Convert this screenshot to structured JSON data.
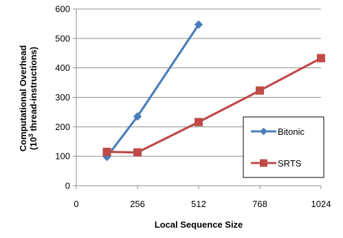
{
  "chart_data": {
    "type": "line",
    "title": "",
    "xlabel": "Local Sequence Size",
    "ylabel_line1": "Computational Overhead",
    "ylabel_line2_prefix": "(10",
    "ylabel_line2_sup": "3",
    "ylabel_line2_suffix": " thread-instructions)",
    "xlim": [
      0,
      1024
    ],
    "ylim": [
      0,
      600
    ],
    "xticks": [
      0,
      256,
      512,
      768,
      1024
    ],
    "yticks": [
      0,
      100,
      200,
      300,
      400,
      500,
      600
    ],
    "grid": "horizontal",
    "legend_position": "right",
    "series": [
      {
        "name": "Bitonic",
        "color": "#4a7ebb",
        "marker": "diamond",
        "points": [
          [
            128,
            98
          ],
          [
            256,
            235
          ],
          [
            512,
            547
          ]
        ]
      },
      {
        "name": "SRTS",
        "color": "#be4b48",
        "marker": "square",
        "points": [
          [
            128,
            115
          ],
          [
            256,
            113
          ],
          [
            512,
            216
          ],
          [
            768,
            323
          ],
          [
            1024,
            433
          ]
        ]
      }
    ]
  }
}
